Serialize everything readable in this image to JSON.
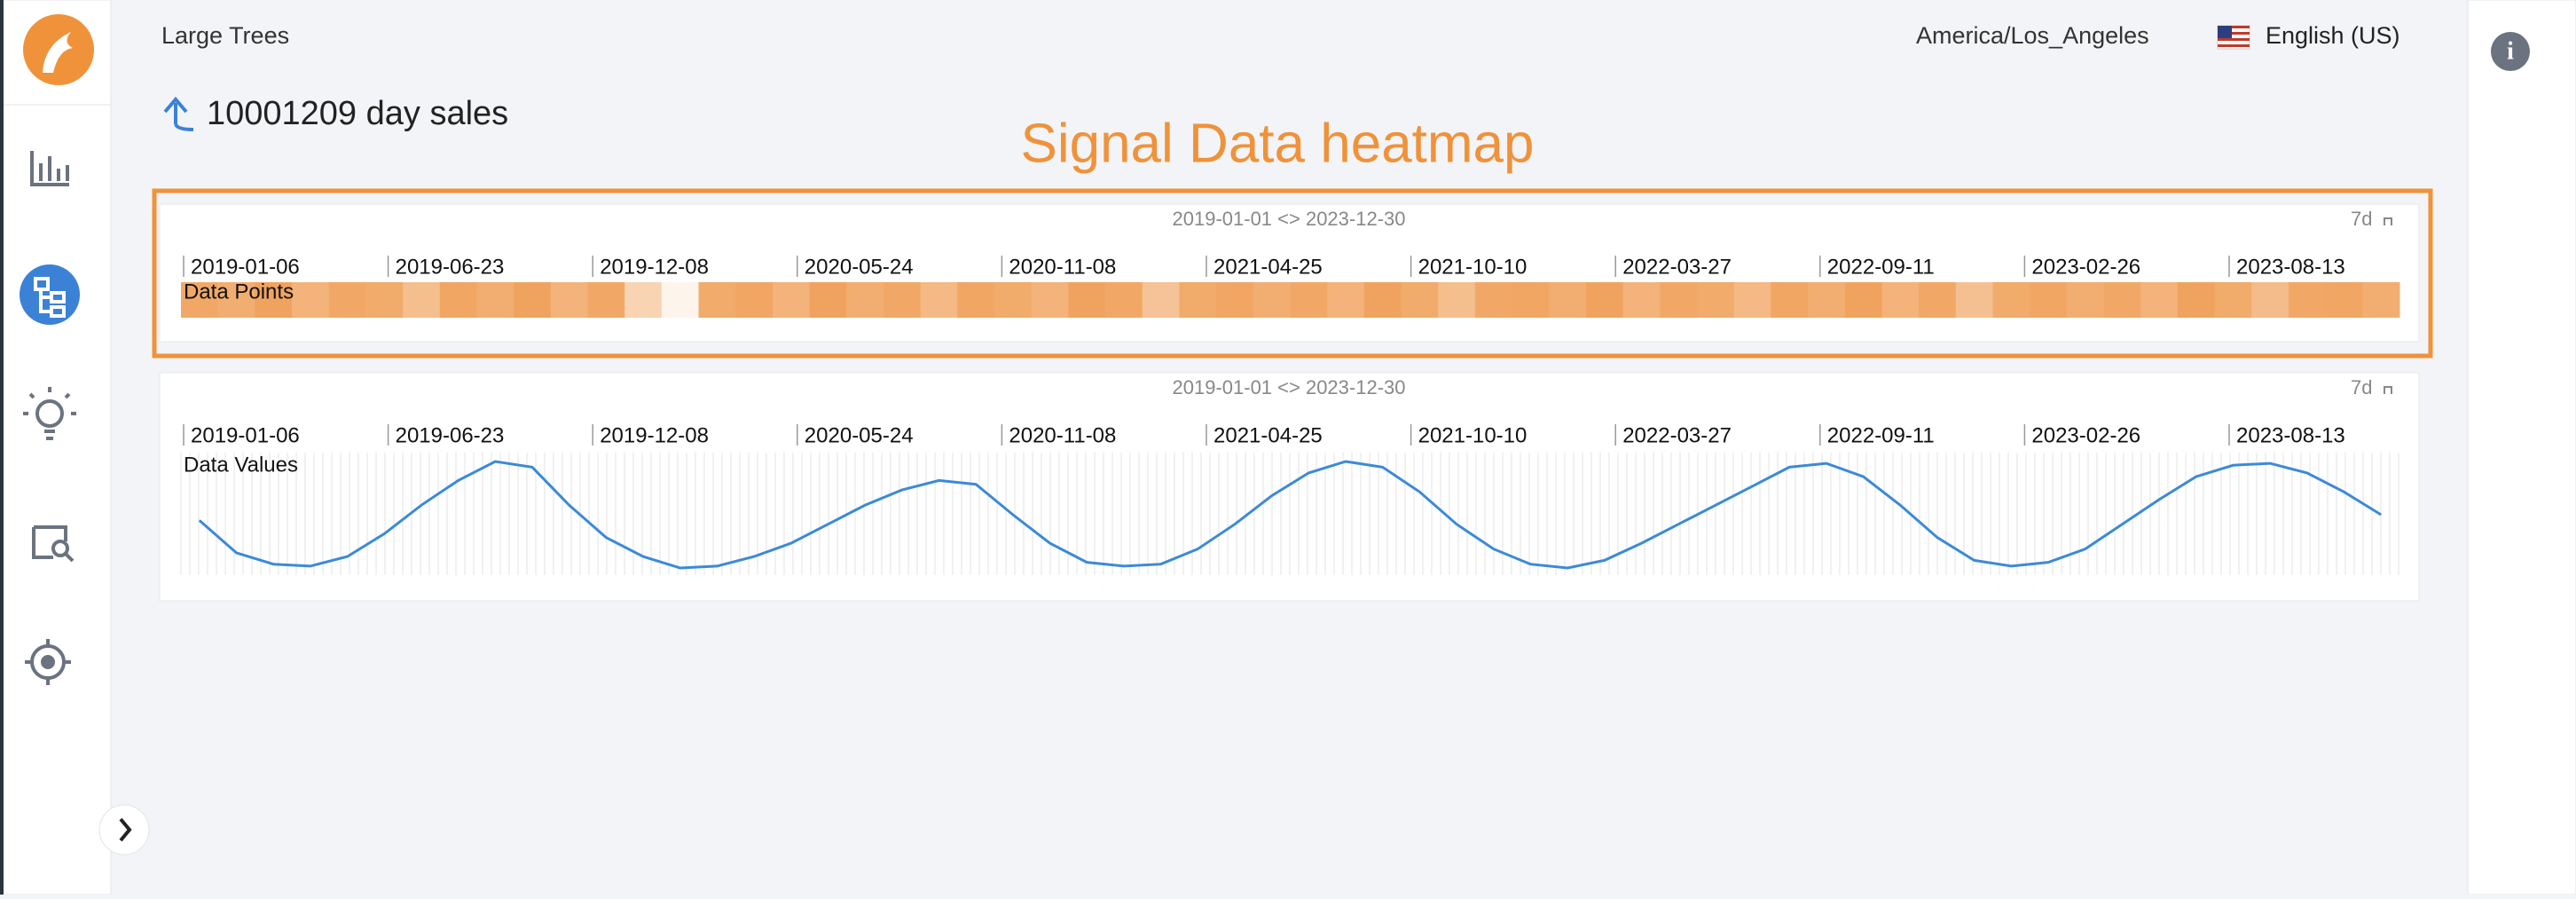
{
  "header": {
    "app": "Large Trees",
    "timezone": "America/Los_Angeles",
    "language": "English (US)"
  },
  "page": {
    "title": "10001209 day sales",
    "annotation": "Signal Data heatmap"
  },
  "panels": [
    {
      "range": "2019-01-01 <> 2023-12-30",
      "interval": "7d",
      "row_label": "Data Points",
      "dates": [
        "2019-01-06",
        "2019-06-23",
        "2019-12-08",
        "2020-05-24",
        "2020-11-08",
        "2021-04-25",
        "2021-10-10",
        "2022-03-27",
        "2022-09-11",
        "2023-02-26",
        "2023-08-13"
      ],
      "chart_data": {
        "type": "heatmap",
        "color": "#f0a35e",
        "values": [
          80,
          75,
          85,
          70,
          80,
          78,
          60,
          82,
          75,
          85,
          70,
          80,
          40,
          10,
          78,
          82,
          70,
          85,
          75,
          80,
          65,
          82,
          78,
          70,
          85,
          80,
          55,
          78,
          82,
          75,
          80,
          70,
          85,
          78,
          60,
          80,
          82,
          75,
          85,
          70,
          80,
          78,
          65,
          82,
          75,
          85,
          70,
          80,
          58,
          78,
          82,
          75,
          80,
          70,
          85,
          78,
          62,
          80,
          82,
          75
        ]
      }
    },
    {
      "range": "2019-01-01 <> 2023-12-30",
      "interval": "7d",
      "row_label": "Data Values",
      "dates": [
        "2019-01-06",
        "2019-06-23",
        "2019-12-08",
        "2020-05-24",
        "2020-11-08",
        "2021-04-25",
        "2021-10-10",
        "2022-03-27",
        "2022-09-11",
        "2023-02-26",
        "2023-08-13"
      ],
      "chart_data": {
        "type": "line",
        "color": "#3b8ad8",
        "values": [
          27,
          10,
          4,
          3,
          8,
          20,
          35,
          48,
          58,
          55,
          35,
          18,
          8,
          2,
          3,
          8,
          15,
          25,
          35,
          43,
          48,
          46,
          30,
          15,
          5,
          3,
          4,
          12,
          25,
          40,
          52,
          58,
          55,
          42,
          25,
          12,
          4,
          2,
          6,
          15,
          25,
          35,
          45,
          55,
          57,
          50,
          35,
          18,
          6,
          3,
          5,
          12,
          25,
          38,
          50,
          56,
          57,
          52,
          42,
          30
        ]
      }
    }
  ]
}
